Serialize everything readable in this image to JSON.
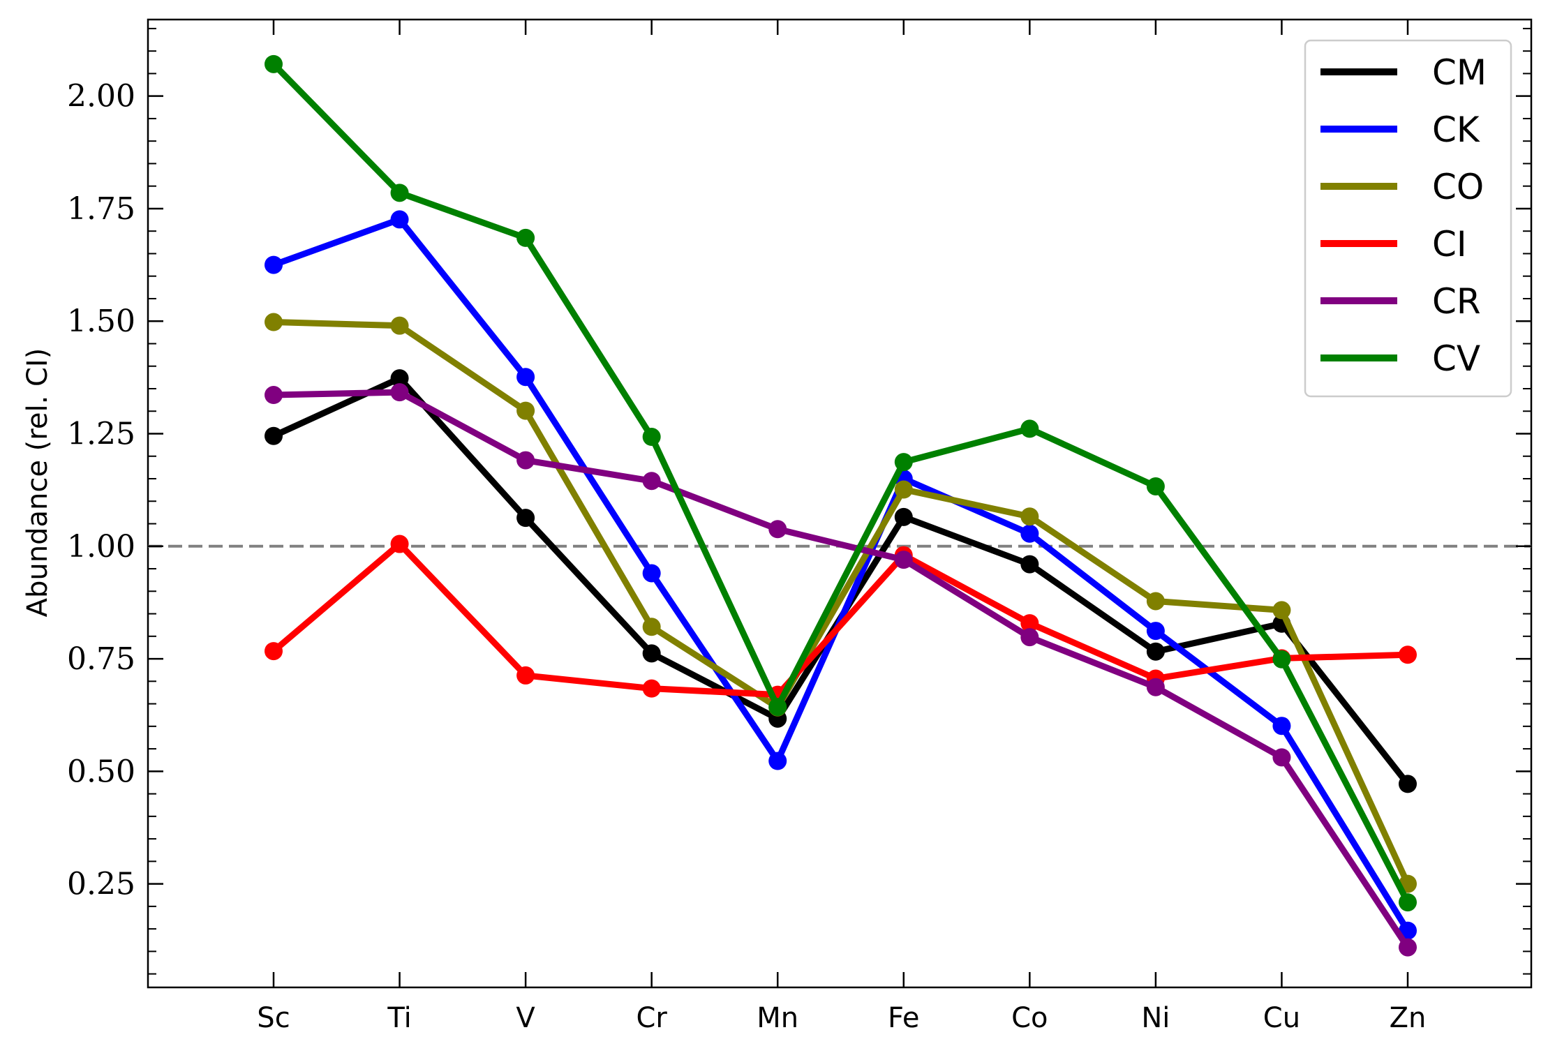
{
  "chart_data": {
    "type": "line",
    "title": "",
    "xlabel": "",
    "ylabel": "Abundance (rel. CI)",
    "categories": [
      "Sc",
      "Ti",
      "V",
      "Cr",
      "Mn",
      "Fe",
      "Co",
      "Ni",
      "Cu",
      "Zn"
    ],
    "ylim": [
      0.02,
      2.17
    ],
    "yticks": [
      0.25,
      0.5,
      0.75,
      1.0,
      1.25,
      1.5,
      1.75,
      2.0
    ],
    "ytick_labels": [
      "0.25",
      "0.50",
      "0.75",
      "1.00",
      "1.25",
      "1.50",
      "1.75",
      "2.00"
    ],
    "reference_line": {
      "y": 1.0,
      "style": "dashed",
      "color": "#808080"
    },
    "grid": false,
    "legend_position": "top-right",
    "series": [
      {
        "name": "CM",
        "color": "#000000",
        "values": [
          1.245,
          1.373,
          1.063,
          0.762,
          0.617,
          1.065,
          0.96,
          0.766,
          0.828,
          0.472
        ]
      },
      {
        "name": "CK",
        "color": "#0000ff",
        "values": [
          1.625,
          1.726,
          1.376,
          0.94,
          0.523,
          1.15,
          1.028,
          0.812,
          0.601,
          0.146
        ]
      },
      {
        "name": "CO",
        "color": "#808000",
        "values": [
          1.498,
          1.49,
          1.301,
          0.821,
          0.642,
          1.126,
          1.066,
          0.878,
          0.858,
          0.25
        ]
      },
      {
        "name": "CI",
        "color": "#ff0000",
        "values": [
          0.767,
          1.005,
          0.713,
          0.684,
          0.67,
          0.98,
          0.829,
          0.706,
          0.751,
          0.759
        ]
      },
      {
        "name": "CR",
        "color": "#800080",
        "values": [
          1.336,
          1.342,
          1.191,
          1.145,
          1.038,
          0.97,
          0.798,
          0.687,
          0.531,
          0.109
        ]
      },
      {
        "name": "CV",
        "color": "#008000",
        "values": [
          2.071,
          1.785,
          1.685,
          1.243,
          0.643,
          1.187,
          1.261,
          1.133,
          0.749,
          0.209
        ]
      }
    ]
  }
}
